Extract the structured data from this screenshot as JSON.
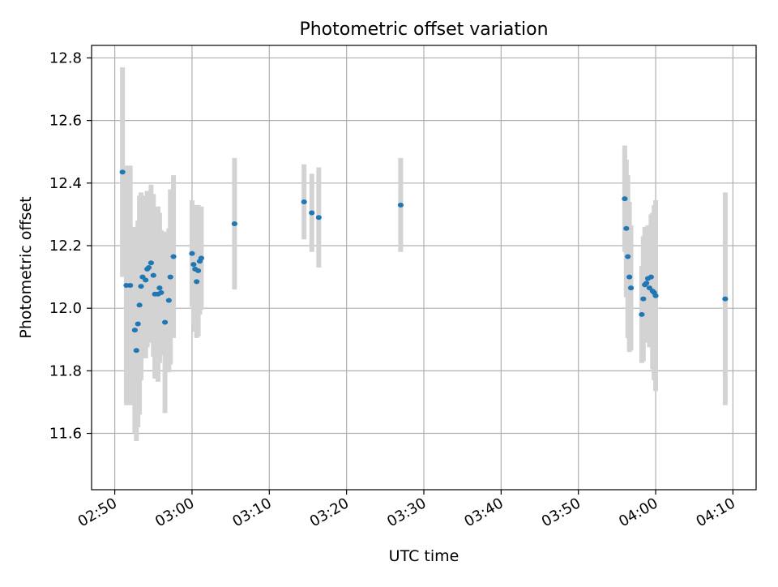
{
  "chart_data": {
    "type": "scatter",
    "title": "Photometric offset variation",
    "xlabel": "UTC time",
    "ylabel": "Photometric offset",
    "x_unit": "UTC time (HH:MM)",
    "xlim": [
      "02:47",
      "04:13"
    ],
    "ylim": [
      11.42,
      12.84
    ],
    "x_ticks": [
      "02:50",
      "03:00",
      "03:10",
      "03:20",
      "03:30",
      "03:40",
      "03:50",
      "04:00",
      "04:10"
    ],
    "y_ticks": [
      "11.6",
      "11.8",
      "12.0",
      "12.2",
      "12.4",
      "12.6",
      "12.8"
    ],
    "grid": true,
    "colors": {
      "points": "#1f77b4",
      "error_bars": "#d3d3d3",
      "grid": "#b0b0b0"
    },
    "series": [
      {
        "points": [
          {
            "x": "02:51:00",
            "y": 12.435,
            "err": 0.335
          },
          {
            "x": "02:51:30",
            "y": 12.073,
            "err": 0.383
          },
          {
            "x": "02:52:00",
            "y": 12.073,
            "err": 0.383
          },
          {
            "x": "02:52:36",
            "y": 11.93,
            "err": 0.33
          },
          {
            "x": "02:52:48",
            "y": 11.865,
            "err": 0.29
          },
          {
            "x": "02:53:00",
            "y": 11.95,
            "err": 0.33
          },
          {
            "x": "02:53:12",
            "y": 12.01,
            "err": 0.35
          },
          {
            "x": "02:53:24",
            "y": 12.07,
            "err": 0.3
          },
          {
            "x": "02:53:36",
            "y": 12.1,
            "err": 0.26
          },
          {
            "x": "02:54:00",
            "y": 12.09,
            "err": 0.25
          },
          {
            "x": "02:54:12",
            "y": 12.125,
            "err": 0.25
          },
          {
            "x": "02:54:24",
            "y": 12.13,
            "err": 0.24
          },
          {
            "x": "02:54:42",
            "y": 12.145,
            "err": 0.25
          },
          {
            "x": "02:55:00",
            "y": 12.105,
            "err": 0.26
          },
          {
            "x": "02:55:12",
            "y": 12.045,
            "err": 0.27
          },
          {
            "x": "02:55:36",
            "y": 12.045,
            "err": 0.28
          },
          {
            "x": "02:55:48",
            "y": 12.065,
            "err": 0.24
          },
          {
            "x": "02:56:00",
            "y": 12.05,
            "err": 0.2
          },
          {
            "x": "02:56:30",
            "y": 11.955,
            "err": 0.29
          },
          {
            "x": "02:57:00",
            "y": 12.025,
            "err": 0.23
          },
          {
            "x": "02:57:12",
            "y": 12.1,
            "err": 0.28
          },
          {
            "x": "02:57:36",
            "y": 12.165,
            "err": 0.26
          },
          {
            "x": "03:00:00",
            "y": 12.175,
            "err": 0.17
          },
          {
            "x": "03:00:12",
            "y": 12.14,
            "err": 0.19
          },
          {
            "x": "03:00:24",
            "y": 12.125,
            "err": 0.2
          },
          {
            "x": "03:00:36",
            "y": 12.085,
            "err": 0.18
          },
          {
            "x": "03:00:48",
            "y": 12.12,
            "err": 0.21
          },
          {
            "x": "03:01:00",
            "y": 12.15,
            "err": 0.17
          },
          {
            "x": "03:01:12",
            "y": 12.16,
            "err": 0.165
          },
          {
            "x": "03:05:30",
            "y": 12.27,
            "err": 0.21
          },
          {
            "x": "03:14:30",
            "y": 12.34,
            "err": 0.12
          },
          {
            "x": "03:15:30",
            "y": 12.305,
            "err": 0.125
          },
          {
            "x": "03:16:24",
            "y": 12.29,
            "err": 0.16
          },
          {
            "x": "03:27:00",
            "y": 12.33,
            "err": 0.15
          },
          {
            "x": "03:56:00",
            "y": 12.35,
            "err": 0.17
          },
          {
            "x": "03:56:12",
            "y": 12.255,
            "err": 0.22
          },
          {
            "x": "03:56:24",
            "y": 12.165,
            "err": 0.26
          },
          {
            "x": "03:56:36",
            "y": 12.1,
            "err": 0.24
          },
          {
            "x": "03:56:48",
            "y": 12.065,
            "err": 0.2
          },
          {
            "x": "03:58:12",
            "y": 11.98,
            "err": 0.155
          },
          {
            "x": "03:58:24",
            "y": 12.03,
            "err": 0.2
          },
          {
            "x": "03:58:36",
            "y": 12.075,
            "err": 0.185
          },
          {
            "x": "03:58:48",
            "y": 12.08,
            "err": 0.18
          },
          {
            "x": "03:59:00",
            "y": 12.095,
            "err": 0.17
          },
          {
            "x": "03:59:12",
            "y": 12.065,
            "err": 0.19
          },
          {
            "x": "03:59:24",
            "y": 12.1,
            "err": 0.2
          },
          {
            "x": "03:59:36",
            "y": 12.055,
            "err": 0.25
          },
          {
            "x": "03:59:48",
            "y": 12.05,
            "err": 0.28
          },
          {
            "x": "04:00:00",
            "y": 12.04,
            "err": 0.305
          },
          {
            "x": "04:09:00",
            "y": 12.03,
            "err": 0.34
          }
        ]
      }
    ]
  }
}
